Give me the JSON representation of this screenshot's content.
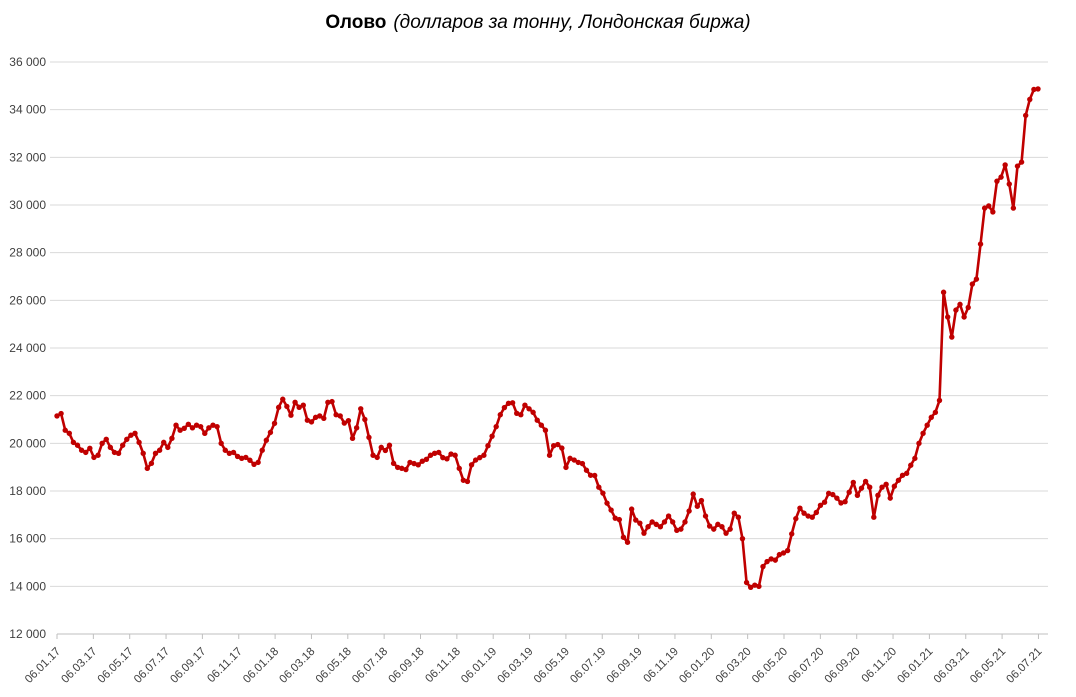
{
  "title": {
    "main": "Олово",
    "sub": "(долларов за тонну, Лондонская биржа)"
  },
  "chart_data": {
    "type": "line",
    "title": "Олово (долларов за тонну, Лондонская биржа)",
    "xlabel": "",
    "ylabel": "",
    "ylim": [
      12000,
      36000
    ],
    "y_tick_step": 2000,
    "grid": true,
    "legend": false,
    "x_tick_labels": [
      "06.01.17",
      "06.03.17",
      "06.05.17",
      "06.07.17",
      "06.09.17",
      "06.11.17",
      "06.01.18",
      "06.03.18",
      "06.05.18",
      "06.07.18",
      "06.09.18",
      "06.11.18",
      "06.01.19",
      "06.03.19",
      "06.05.19",
      "06.07.19",
      "06.09.19",
      "06.11.19",
      "06.01.20",
      "06.03.20",
      "06.05.20",
      "06.07.20",
      "06.09.20",
      "06.11.20",
      "06.01.21",
      "06.03.21",
      "06.05.21",
      "06.07.21"
    ],
    "y_ticks": [
      {
        "value": 12000,
        "label": "12 000"
      },
      {
        "value": 14000,
        "label": "14 000"
      },
      {
        "value": 16000,
        "label": "16 000"
      },
      {
        "value": 18000,
        "label": "18 000"
      },
      {
        "value": 20000,
        "label": "20 000"
      },
      {
        "value": 22000,
        "label": "22 000"
      },
      {
        "value": 24000,
        "label": "24 000"
      },
      {
        "value": 26000,
        "label": "26 000"
      },
      {
        "value": 28000,
        "label": "28 000"
      },
      {
        "value": 30000,
        "label": "30 000"
      },
      {
        "value": 32000,
        "label": "32 000"
      },
      {
        "value": 34000,
        "label": "34 000"
      },
      {
        "value": 36000,
        "label": "36 000"
      }
    ],
    "series": [
      {
        "name": "Олово",
        "frequency": "weekly",
        "marker": "circle",
        "values": [
          21150,
          21250,
          20550,
          20420,
          20040,
          19920,
          19710,
          19620,
          19790,
          19410,
          19500,
          20000,
          20170,
          19830,
          19620,
          19580,
          19920,
          20170,
          20340,
          20420,
          20040,
          19580,
          18950,
          19160,
          19580,
          19710,
          20040,
          19830,
          20210,
          20760,
          20550,
          20630,
          20800,
          20650,
          20760,
          20700,
          20420,
          20650,
          20760,
          20700,
          20000,
          19710,
          19580,
          19620,
          19450,
          19370,
          19410,
          19290,
          19120,
          19200,
          19710,
          20130,
          20460,
          20840,
          21510,
          21850,
          21550,
          21180,
          21720,
          21510,
          21600,
          20970,
          20900,
          21090,
          21150,
          21050,
          21720,
          21750,
          21200,
          21150,
          20850,
          20950,
          20210,
          20650,
          21450,
          21000,
          20250,
          19500,
          19410,
          19830,
          19700,
          19920,
          19160,
          18990,
          18950,
          18900,
          19200,
          19150,
          19100,
          19250,
          19330,
          19500,
          19580,
          19620,
          19400,
          19350,
          19550,
          19500,
          18950,
          18450,
          18400,
          19100,
          19300,
          19400,
          19500,
          19900,
          20300,
          20700,
          21200,
          21500,
          21680,
          21700,
          21260,
          21200,
          21600,
          21450,
          21300,
          20970,
          20760,
          20550,
          19500,
          19900,
          19950,
          19800,
          18990,
          19370,
          19300,
          19200,
          19150,
          18870,
          18660,
          18650,
          18160,
          17910,
          17490,
          17200,
          16860,
          16800,
          16060,
          15850,
          17240,
          16780,
          16650,
          16230,
          16500,
          16700,
          16600,
          16500,
          16700,
          16950,
          16700,
          16350,
          16400,
          16700,
          17160,
          17870,
          17360,
          17600,
          16950,
          16530,
          16400,
          16600,
          16500,
          16230,
          16400,
          17070,
          16900,
          16000,
          14160,
          13960,
          14050,
          14000,
          14830,
          15040,
          15150,
          15100,
          15330,
          15400,
          15500,
          16200,
          16840,
          17280,
          17070,
          16950,
          16900,
          17100,
          17400,
          17530,
          17900,
          17850,
          17700,
          17500,
          17550,
          17950,
          18360,
          17820,
          18120,
          18400,
          18160,
          16900,
          17820,
          18160,
          18280,
          17700,
          18200,
          18450,
          18660,
          18740,
          19080,
          19370,
          20000,
          20420,
          20760,
          21090,
          21300,
          21800,
          26340,
          25300,
          24460,
          25590,
          25830,
          25300,
          25700,
          26680,
          26890,
          28360,
          29870,
          29960,
          29710,
          31000,
          31170,
          31680,
          30880,
          29870,
          31630,
          31800,
          33760,
          34430,
          34850,
          34870
        ]
      }
    ],
    "style": {
      "line_color": "#C00000",
      "marker_color": "#C00000",
      "grid_color": "#D9D9D9",
      "axis_color": "#BFBFBF",
      "label_color": "#404040",
      "background": "#FFFFFF"
    }
  }
}
